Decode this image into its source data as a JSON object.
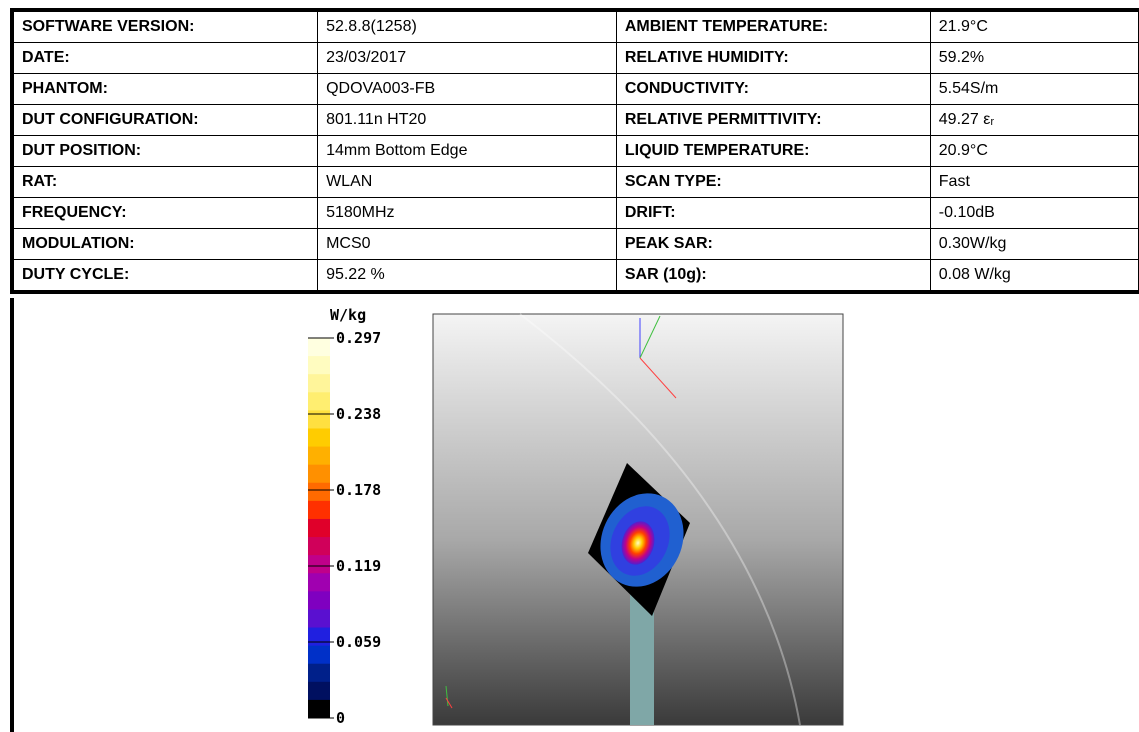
{
  "table": {
    "rows": [
      [
        "SOFTWARE VERSION:",
        "52.8.8(1258)",
        "AMBIENT TEMPERATURE:",
        "21.9°C"
      ],
      [
        "DATE:",
        "23/03/2017",
        "RELATIVE HUMIDITY:",
        "59.2%"
      ],
      [
        "PHANTOM:",
        "QDOVA003-FB",
        "CONDUCTIVITY:",
        "5.54S/m"
      ],
      [
        "DUT CONFIGURATION:",
        "801.11n  HT20",
        "RELATIVE PERMITTIVITY:",
        "49.27 εᵣ"
      ],
      [
        "DUT POSITION:",
        "14mm Bottom Edge",
        "LIQUID TEMPERATURE:",
        "20.9°C"
      ],
      [
        "RAT:",
        "WLAN",
        "SCAN TYPE:",
        "Fast"
      ],
      [
        "FREQUENCY:",
        "5180MHz",
        "DRIFT:",
        "-0.10dB"
      ],
      [
        "MODULATION:",
        "MCS0",
        "PEAK SAR:",
        "0.30W/kg"
      ],
      [
        "DUTY CYCLE:",
        "95.22 %",
        "SAR (10g):",
        "0.08 W/kg"
      ]
    ]
  },
  "colorbar": {
    "unit": "W/kg",
    "labels": [
      "0.297",
      "0.238",
      "0.178",
      "0.119",
      "0.059",
      "0"
    ]
  }
}
